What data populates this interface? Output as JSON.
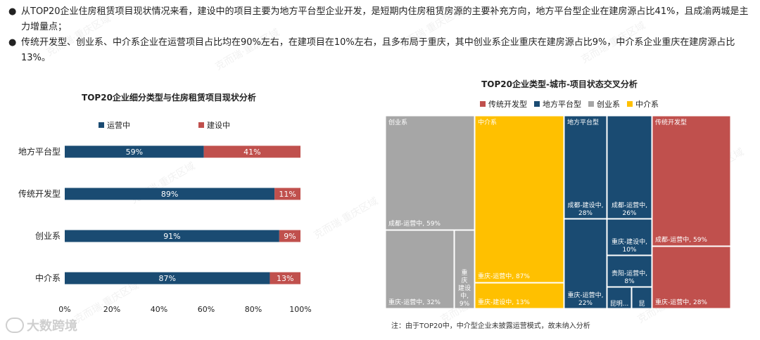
{
  "bullets": [
    "从TOP20企业住房租赁项目现状情况来看，建设中的项目主要为地方平台型企业开发，是短期内住房租赁房源的主要补充方向，地方平台型企业在建房源占比41%，且成渝两城是主力增量点；",
    "传统开发型、创业系、中介系企业在运营项目占比均在90%左右，在建项目在10%左右，且多布局于重庆，其中创业系企业重庆在建房源占比9%，中介系企业重庆在建房源占比13%。"
  ],
  "bullet_symbol": "●",
  "watermark_text": "克而瑞·重庆区域",
  "logo_text": "大数跨境",
  "note": "注：由于TOP20中，中介型企业未披露运营模式，故未纳入分析",
  "colors": {
    "operating": "#1a4b72",
    "building": "#c0504d",
    "chuangye": "#a6a6a6",
    "zhongjie": "#ffc000"
  },
  "chart_data": [
    {
      "type": "bar",
      "orientation": "horizontal",
      "stacked": true,
      "title": "TOP20企业细分类型与住房租赁项目现状分析",
      "categories": [
        "地方平台型",
        "传统开发型",
        "创业系",
        "中介系"
      ],
      "series": [
        {
          "name": "运营中",
          "values": [
            59,
            89,
            91,
            87
          ],
          "labels": [
            "59%",
            "89%",
            "91%",
            "87%"
          ]
        },
        {
          "name": "建设中",
          "values": [
            41,
            11,
            9,
            13
          ],
          "labels": [
            "41%",
            "11%",
            "9%",
            "13%"
          ]
        }
      ],
      "xlim": [
        0,
        100
      ],
      "xticks": [
        "0%",
        "20%",
        "40%",
        "60%",
        "80%",
        "100%"
      ],
      "legend_position": "top",
      "grid": false
    },
    {
      "type": "treemap",
      "title": "TOP20企业类型-城市-项目状态交叉分析",
      "legend": [
        "传统开发型",
        "地方平台型",
        "创业系",
        "中介系"
      ],
      "groups": [
        {
          "name": "创业系",
          "color": "chuangye",
          "cells": [
            {
              "label": "成都-运营中, 59%",
              "value": 59
            },
            {
              "label": "重庆-运营中, 32%",
              "value": 32
            },
            {
              "label": "重庆-建设中, 9%",
              "value": 9
            }
          ]
        },
        {
          "name": "中介系",
          "color": "zhongjie",
          "cells": [
            {
              "label": "重庆-运营中, 87%",
              "value": 87
            },
            {
              "label": "重庆-建设中, 13%",
              "value": 13
            }
          ]
        },
        {
          "name": "地方平台型",
          "color": "operating",
          "cells": [
            {
              "label": "成都-建设中, 28%",
              "value": 28
            },
            {
              "label": "成都-运营中, 26%",
              "value": 26
            },
            {
              "label": "重庆-运营中, 22%",
              "value": 22
            },
            {
              "label": "重庆-建设中, 10%",
              "value": 10
            },
            {
              "label": "贵阳-运营中, 8%",
              "value": 8
            },
            {
              "label": "昆明...",
              "value": 4
            },
            {
              "label": "昆",
              "value": 2
            }
          ]
        },
        {
          "name": "传统开发型",
          "color": "building",
          "cells": [
            {
              "label": "成都-运营中, 59%",
              "value": 59
            },
            {
              "label": "重庆-运营中, 28%",
              "value": 28
            }
          ]
        }
      ]
    }
  ]
}
